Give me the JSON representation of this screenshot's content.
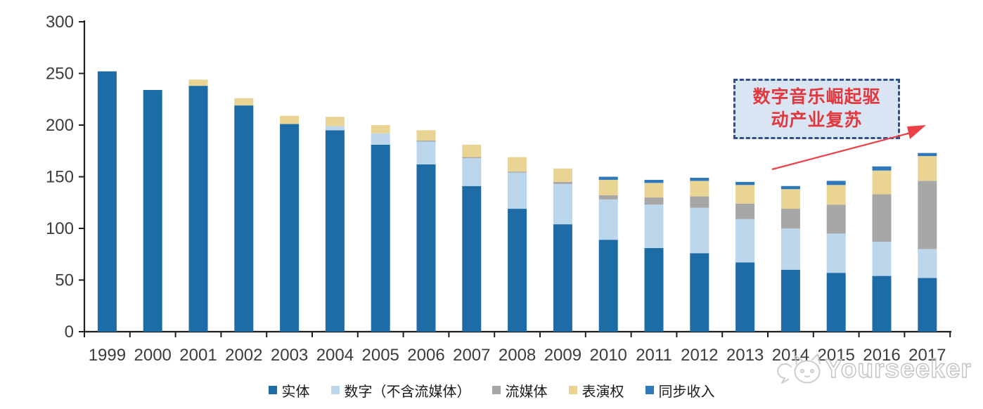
{
  "chart_data": {
    "type": "bar",
    "stacked": true,
    "title": "",
    "xlabel": "",
    "ylabel": "",
    "ylim": [
      0,
      300
    ],
    "yticks": [
      0,
      50,
      100,
      150,
      200,
      250,
      300
    ],
    "grid": false,
    "legend_position": "bottom",
    "categories": [
      "1999",
      "2000",
      "2001",
      "2002",
      "2003",
      "2004",
      "2005",
      "2006",
      "2007",
      "2008",
      "2009",
      "2010",
      "2011",
      "2012",
      "2013",
      "2014",
      "2015",
      "2016",
      "2017"
    ],
    "series": [
      {
        "name": "实体",
        "color": "#1E6CA6",
        "values": [
          252,
          234,
          238,
          219,
          201,
          195,
          181,
          162,
          141,
          119,
          104,
          89,
          81,
          76,
          67,
          60,
          57,
          54,
          52
        ]
      },
      {
        "name": "数字（不含流媒体）",
        "color": "#BCD6EC",
        "values": [
          0,
          0,
          0,
          0,
          0,
          4,
          11,
          22,
          27,
          35,
          39,
          39,
          42,
          44,
          42,
          40,
          38,
          33,
          28
        ]
      },
      {
        "name": "流媒体",
        "color": "#A7A7A7",
        "values": [
          0,
          0,
          0,
          0,
          0,
          0,
          0,
          1,
          1,
          1,
          2,
          4,
          7,
          11,
          15,
          19,
          28,
          46,
          66
        ]
      },
      {
        "name": "表演权",
        "color": "#E9D494",
        "values": [
          0,
          0,
          6,
          7,
          8,
          9,
          8,
          10,
          12,
          14,
          13,
          15,
          14,
          15,
          18,
          19,
          19,
          23,
          24
        ]
      },
      {
        "name": "同步收入",
        "color": "#2E78BC",
        "values": [
          0,
          0,
          0,
          0,
          0,
          0,
          0,
          0,
          0,
          0,
          0,
          3,
          3,
          3,
          3,
          3,
          4,
          4,
          3
        ]
      }
    ]
  },
  "annotation": {
    "line1": "数字音乐崛起驱",
    "line2": "动产业复苏",
    "text_color": "#E2383D",
    "box_fill": "#D9E5F3",
    "box_border": "#31508C",
    "arrow_color": "#EC3F46"
  },
  "axis": {
    "label_color": "#3C3C3C",
    "line_color": "#1F1F1F"
  },
  "watermark": {
    "text": "Yourseeker"
  }
}
